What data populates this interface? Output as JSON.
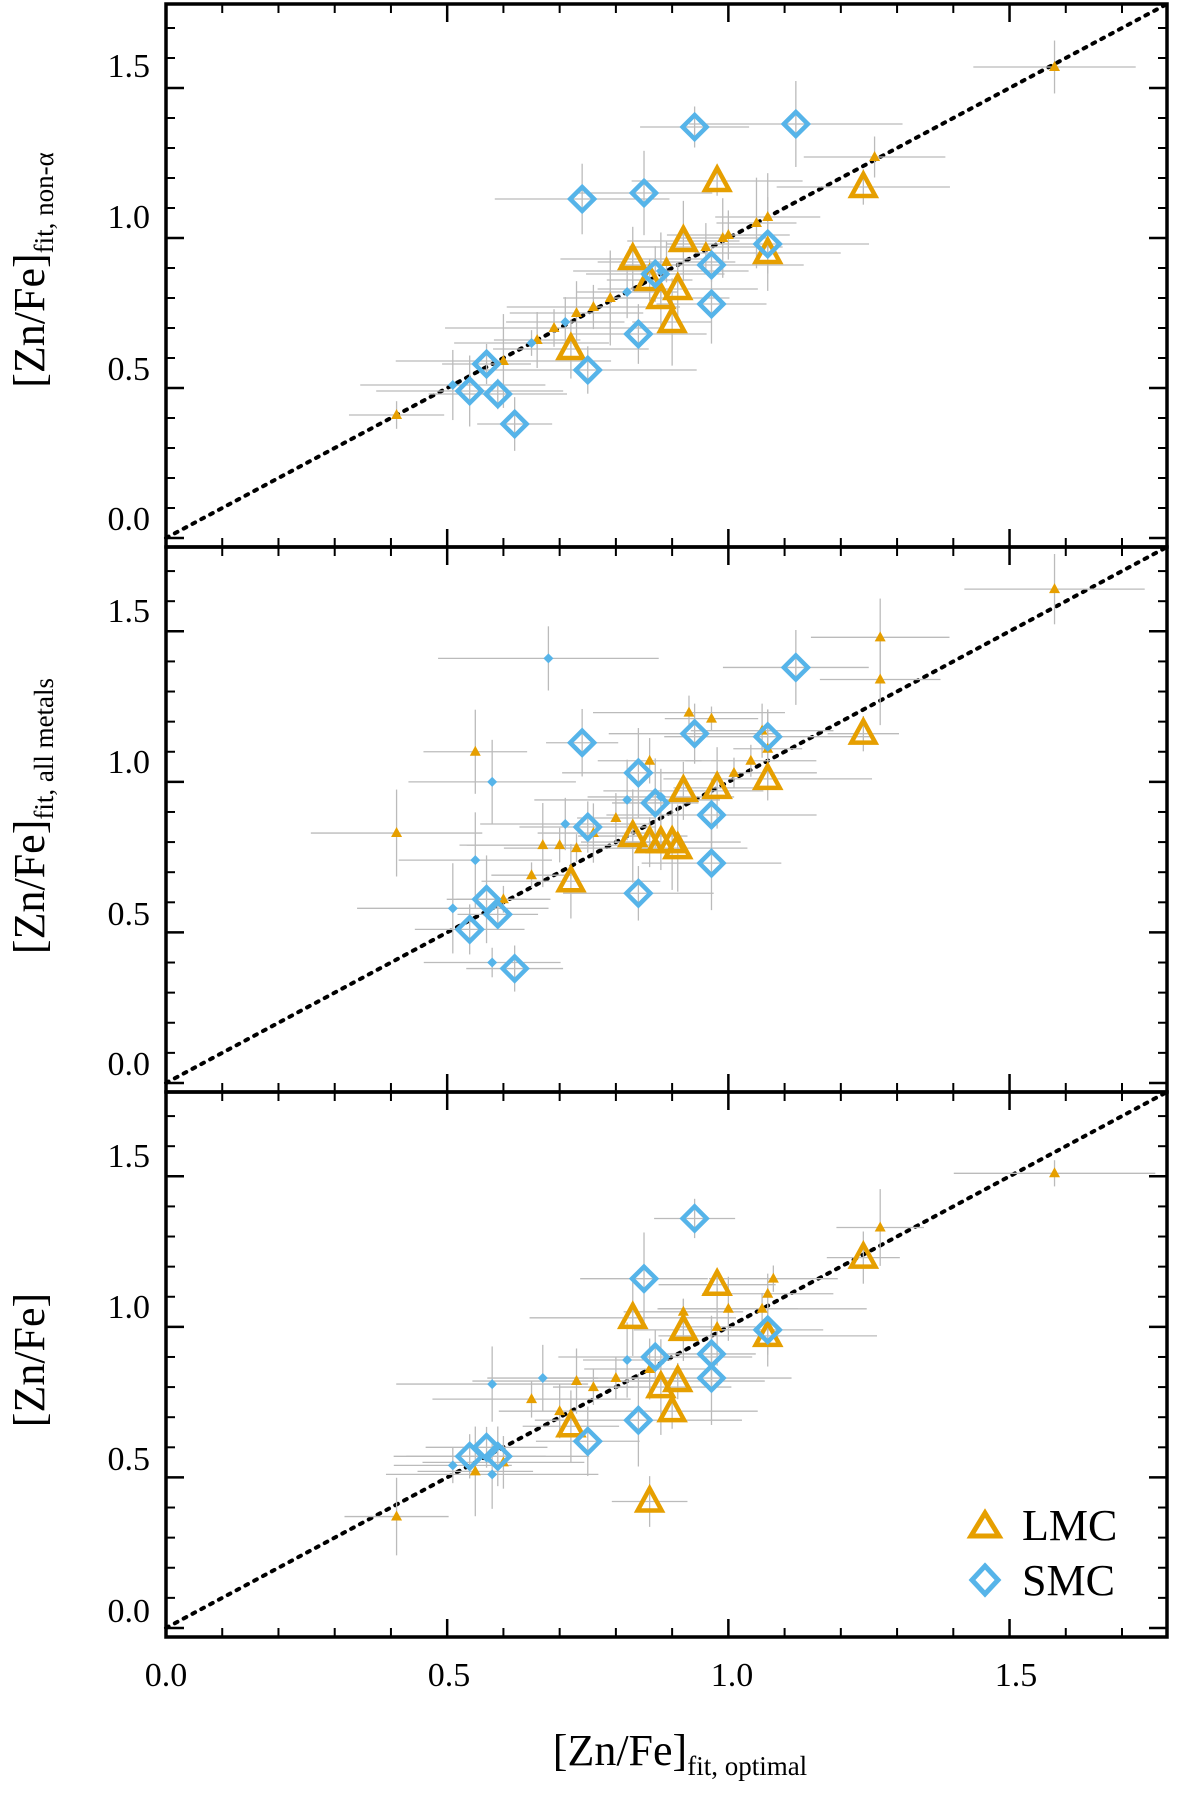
{
  "chart_data": {
    "type": "scatter",
    "xlabel": "[Zn/Fe]",
    "xlabel_sub": "fit, optimal",
    "xlim": [
      0.0,
      1.78
    ],
    "ylim": [
      -0.03,
      1.78
    ],
    "x_ticks": [
      "0.0",
      "0.5",
      "1.0",
      "1.5"
    ],
    "y_ticks": [
      "0.0",
      "0.5",
      "1.0",
      "1.5"
    ],
    "reference_line": "y = x (dotted)",
    "legend": {
      "placement": "bottom-right of bottom panel",
      "entries": [
        {
          "name": "LMC",
          "marker": "triangle",
          "color": "#E69F00"
        },
        {
          "name": "SMC",
          "marker": "diamond",
          "color": "#56B4E9"
        }
      ]
    },
    "colors": {
      "lmc": "#E69F00",
      "smc": "#56B4E9",
      "errorbar": "#bbbbbb"
    },
    "panels": [
      {
        "ylabel": "[Zn/Fe]",
        "ylabel_sub": "fit, non-α",
        "lmc_big": [
          [
            0.83,
            0.93
          ],
          [
            0.86,
            0.86
          ],
          [
            0.88,
            0.8
          ],
          [
            0.9,
            0.72
          ],
          [
            0.91,
            0.83
          ],
          [
            0.92,
            0.99
          ],
          [
            0.98,
            1.19
          ],
          [
            1.07,
            0.95
          ],
          [
            1.24,
            1.17
          ],
          [
            0.72,
            0.63
          ]
        ],
        "lmc_small": [
          [
            0.41,
            0.41
          ],
          [
            0.6,
            0.59
          ],
          [
            0.66,
            0.66
          ],
          [
            0.69,
            0.7
          ],
          [
            0.73,
            0.75
          ],
          [
            0.76,
            0.77
          ],
          [
            0.79,
            0.8
          ],
          [
            0.89,
            0.92
          ],
          [
            0.96,
            0.97
          ],
          [
            0.99,
            1.0
          ],
          [
            1.0,
            1.01
          ],
          [
            1.05,
            1.05
          ],
          [
            1.07,
            1.07
          ],
          [
            1.26,
            1.27
          ],
          [
            1.58,
            1.57
          ]
        ],
        "smc_big": [
          [
            0.54,
            0.49
          ],
          [
            0.57,
            0.58
          ],
          [
            0.59,
            0.48
          ],
          [
            0.62,
            0.38
          ],
          [
            0.74,
            1.13
          ],
          [
            0.75,
            0.56
          ],
          [
            0.84,
            0.68
          ],
          [
            0.85,
            1.15
          ],
          [
            0.87,
            0.88
          ],
          [
            0.94,
            1.37
          ],
          [
            0.97,
            0.91
          ],
          [
            0.97,
            0.78
          ],
          [
            1.07,
            0.98
          ],
          [
            1.12,
            1.38
          ]
        ],
        "smc_small": [
          [
            0.51,
            0.51
          ],
          [
            0.65,
            0.65
          ],
          [
            0.71,
            0.72
          ],
          [
            0.82,
            0.82
          ],
          [
            0.88,
            0.89
          ]
        ]
      },
      {
        "ylabel": "[Zn/Fe]",
        "ylabel_sub": "fit, all metals",
        "lmc_big": [
          [
            0.83,
            0.82
          ],
          [
            0.86,
            0.8
          ],
          [
            0.88,
            0.8
          ],
          [
            0.9,
            0.8
          ],
          [
            0.91,
            0.78
          ],
          [
            0.92,
            0.97
          ],
          [
            0.98,
            0.98
          ],
          [
            1.07,
            1.01
          ],
          [
            1.24,
            1.16
          ],
          [
            0.72,
            0.67
          ]
        ],
        "lmc_small": [
          [
            0.41,
            0.83
          ],
          [
            0.55,
            1.1
          ],
          [
            0.6,
            0.61
          ],
          [
            0.65,
            0.69
          ],
          [
            0.67,
            0.79
          ],
          [
            0.7,
            0.79
          ],
          [
            0.73,
            0.78
          ],
          [
            0.76,
            0.83
          ],
          [
            0.8,
            0.88
          ],
          [
            0.86,
            1.07
          ],
          [
            0.93,
            1.23
          ],
          [
            0.97,
            1.21
          ],
          [
            1.01,
            1.03
          ],
          [
            1.04,
            1.07
          ],
          [
            1.06,
            1.17
          ],
          [
            1.07,
            1.11
          ],
          [
            1.27,
            1.48
          ],
          [
            1.27,
            1.34
          ],
          [
            1.58,
            1.64
          ]
        ],
        "smc_big": [
          [
            0.54,
            0.51
          ],
          [
            0.57,
            0.61
          ],
          [
            0.59,
            0.56
          ],
          [
            0.62,
            0.38
          ],
          [
            0.74,
            1.13
          ],
          [
            0.75,
            0.85
          ],
          [
            0.84,
            1.03
          ],
          [
            0.84,
            0.63
          ],
          [
            0.87,
            0.93
          ],
          [
            0.94,
            1.16
          ],
          [
            0.97,
            0.89
          ],
          [
            0.97,
            0.73
          ],
          [
            1.07,
            1.15
          ],
          [
            1.12,
            1.38
          ]
        ],
        "smc_small": [
          [
            0.51,
            0.58
          ],
          [
            0.55,
            0.74
          ],
          [
            0.58,
            1.0
          ],
          [
            0.58,
            0.4
          ],
          [
            0.68,
            1.41
          ],
          [
            0.71,
            0.86
          ],
          [
            0.82,
            0.94
          ],
          [
            0.88,
            0.95
          ]
        ]
      },
      {
        "ylabel": "[Zn/Fe]",
        "ylabel_sub": "",
        "lmc_big": [
          [
            0.83,
            1.03
          ],
          [
            0.86,
            0.42
          ],
          [
            0.88,
            0.8
          ],
          [
            0.9,
            0.72
          ],
          [
            0.91,
            0.82
          ],
          [
            0.92,
            0.99
          ],
          [
            0.98,
            1.14
          ],
          [
            1.07,
            0.97
          ],
          [
            1.24,
            1.23
          ],
          [
            0.72,
            0.67
          ]
        ],
        "lmc_small": [
          [
            0.41,
            0.37
          ],
          [
            0.55,
            0.52
          ],
          [
            0.6,
            0.55
          ],
          [
            0.65,
            0.76
          ],
          [
            0.7,
            0.72
          ],
          [
            0.73,
            0.82
          ],
          [
            0.76,
            0.8
          ],
          [
            0.8,
            0.83
          ],
          [
            0.86,
            0.86
          ],
          [
            0.92,
            1.05
          ],
          [
            0.98,
            1.0
          ],
          [
            1.0,
            1.06
          ],
          [
            1.06,
            1.06
          ],
          [
            1.07,
            1.11
          ],
          [
            1.08,
            1.16
          ],
          [
            1.27,
            1.33
          ],
          [
            1.58,
            1.51
          ]
        ],
        "smc_big": [
          [
            0.54,
            0.57
          ],
          [
            0.57,
            0.6
          ],
          [
            0.59,
            0.57
          ],
          [
            0.75,
            0.62
          ],
          [
            0.84,
            0.69
          ],
          [
            0.85,
            1.16
          ],
          [
            0.87,
            0.9
          ],
          [
            0.94,
            1.36
          ],
          [
            0.97,
            0.91
          ],
          [
            0.97,
            0.83
          ],
          [
            1.07,
            0.99
          ]
        ],
        "smc_small": [
          [
            0.51,
            0.54
          ],
          [
            0.58,
            0.51
          ],
          [
            0.58,
            0.81
          ],
          [
            0.67,
            0.83
          ],
          [
            0.82,
            0.89
          ]
        ]
      }
    ]
  }
}
